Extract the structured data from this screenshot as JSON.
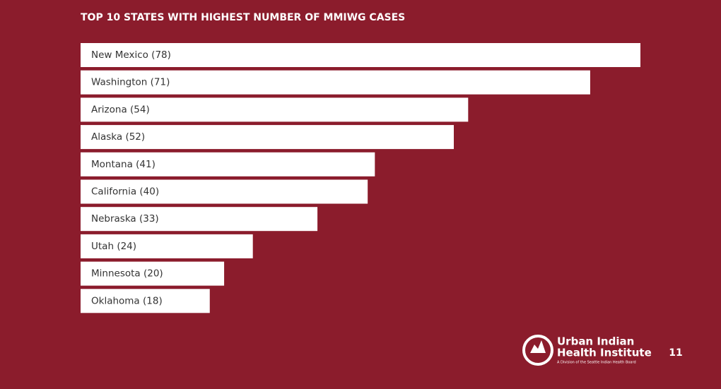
{
  "chart_data": {
    "type": "bar",
    "orientation": "horizontal",
    "title": "TOP 10 STATES WITH HIGHEST NUMBER OF MMIWG CASES",
    "categories": [
      "New Mexico",
      "Washington",
      "Arizona",
      "Alaska",
      "Montana",
      "California",
      "Nebraska",
      "Utah",
      "Minnesota",
      "Oklahoma"
    ],
    "values": [
      78,
      71,
      54,
      52,
      41,
      40,
      33,
      24,
      20,
      18
    ],
    "value_labels": [
      "(78)",
      "(71)",
      "(54)",
      "(52)",
      "(41)",
      "(40)",
      "(33)",
      "(24)",
      "(20)",
      "(18)"
    ],
    "color": "#ffffff"
  },
  "branding": {
    "name_line1": "Urban Indian",
    "name_line2": "Health Institute",
    "tagline": "A Division of the Seattle Indian Health Board",
    "page_number": "11"
  }
}
